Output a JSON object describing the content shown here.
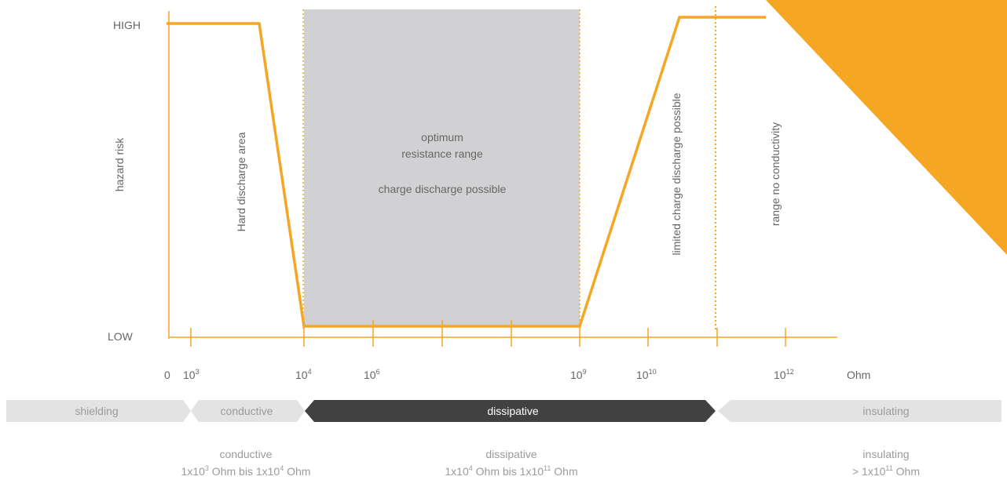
{
  "colors": {
    "accent": "#f5a623",
    "optimum_fill": "#d1d1d3",
    "band_light": "#e3e3e3",
    "band_dark": "#414141",
    "text": "#666666"
  },
  "labels": {
    "high": "HIGH",
    "low": "LOW",
    "y_axis": "hazard risk",
    "unit": "Ohm",
    "hard_discharge": "Hard discharge area",
    "optimum_1": "optimum",
    "optimum_2": "resistance range",
    "optimum_3": "charge discharge possible",
    "limited": "limited charge discharge possible",
    "no_conductivity": "range no conductivity"
  },
  "ticks": [
    {
      "base": "0",
      "exp": ""
    },
    {
      "base": "10",
      "exp": "3"
    },
    {
      "base": "10",
      "exp": "4"
    },
    {
      "base": "10",
      "exp": "6"
    },
    {
      "base": "10",
      "exp": "9"
    },
    {
      "base": "10",
      "exp": "10"
    },
    {
      "base": "10",
      "exp": "12"
    }
  ],
  "bands": [
    {
      "label": "shielding"
    },
    {
      "label": "conductive"
    },
    {
      "label": "dissipative"
    },
    {
      "label": "insulating"
    }
  ],
  "legend": [
    {
      "title": "conductive",
      "base1": "1x10",
      "exp1": "3",
      "mid": " Ohm bis 1x10",
      "exp2": "4",
      "end": " Ohm"
    },
    {
      "title": "dissipative",
      "base1": "1x10",
      "exp1": "4",
      "mid": " Ohm bis 1x10",
      "exp2": "11",
      "end": " Ohm"
    },
    {
      "title": "insulating",
      "base1": "> 1x10",
      "exp1": "11",
      "mid": " Ohm",
      "exp2": "",
      "end": ""
    }
  ]
}
